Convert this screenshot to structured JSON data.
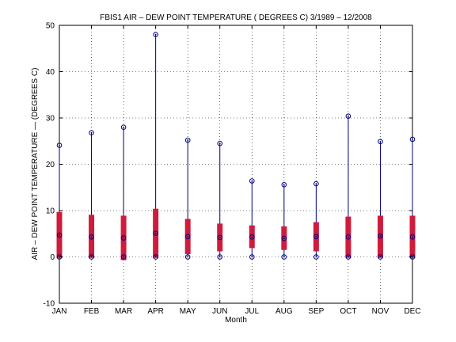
{
  "chart_data": {
    "type": "box",
    "title": "FBIS1  AIR – DEW POINT TEMPERATURE ( DEGREES C) 3/1989 – 12/2008",
    "xlabel": "Month",
    "ylabel": "AIR – DEW POINT TEMPERATURE — (DEGREES C)",
    "ylim": [
      -10,
      50
    ],
    "yticks": [
      -10,
      0,
      10,
      20,
      30,
      40,
      50
    ],
    "grid": true,
    "categories": [
      "JAN",
      "FEB",
      "MAR",
      "APR",
      "MAY",
      "JUN",
      "JUL",
      "AUG",
      "SEP",
      "OCT",
      "NOV",
      "DEC"
    ],
    "min": [
      0,
      0,
      0,
      0,
      0,
      0,
      0,
      0,
      0,
      0,
      0,
      0
    ],
    "q1": [
      -0.2,
      -0.2,
      -0.7,
      -0.2,
      0.6,
      1.2,
      1.9,
      1.5,
      1.2,
      -0.2,
      -0.2,
      -0.2
    ],
    "median": [
      4.7,
      4.3,
      4.1,
      5.1,
      4.4,
      4.2,
      4.3,
      4.0,
      4.4,
      4.3,
      4.5,
      4.3
    ],
    "q3": [
      9.7,
      9.1,
      8.9,
      10.4,
      8.2,
      7.2,
      6.8,
      6.6,
      7.5,
      8.7,
      8.9,
      8.9
    ],
    "max": [
      24.1,
      26.8,
      28.0,
      48.0,
      25.2,
      24.5,
      16.4,
      15.6,
      15.8,
      30.4,
      24.9,
      25.4
    ],
    "colors": {
      "whisker": "#000080",
      "box": "#d01c3c",
      "marker": "#000080",
      "grid": "#000000"
    }
  }
}
